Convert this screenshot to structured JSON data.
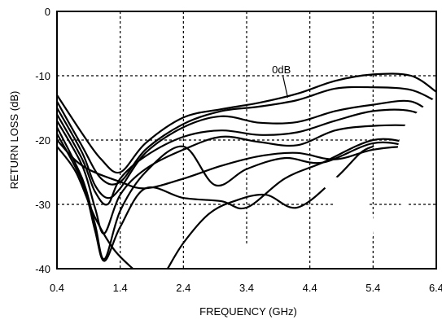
{
  "chart_data": {
    "type": "line",
    "xlabel": "FREQUENCY (GHz)",
    "ylabel": "RETURN LOSS (dB)",
    "xlim": [
      0.4,
      6.4
    ],
    "ylim": [
      -40,
      0
    ],
    "xticks": [
      0.4,
      1.4,
      2.4,
      3.4,
      4.4,
      5.4,
      6.4
    ],
    "xtick_labels": [
      "0.4",
      "1.4",
      "2.4",
      "3.4",
      "4.4",
      "5.4",
      "6.4"
    ],
    "yticks": [
      0,
      -10,
      -20,
      -30,
      -40
    ],
    "ytick_labels": [
      "0",
      "-10",
      "-20",
      "-30",
      "-40"
    ],
    "grid": true,
    "annotations": [
      {
        "text": "0dB",
        "x": 3.95,
        "y": -9.6,
        "arrow_to_x": 4.05,
        "arrow_to_y": -13.4
      }
    ],
    "series": [
      {
        "x": [
          0.4,
          0.8,
          1.1,
          1.4,
          1.8,
          2.4,
          3.0,
          3.6,
          4.2,
          4.8,
          5.4,
          6.0,
          6.4
        ],
        "y": [
          -13,
          -19,
          -23,
          -25,
          -20.5,
          -16.5,
          -15.2,
          -14.2,
          -12.8,
          -10.8,
          -9.8,
          -10,
          -12.5
        ]
      },
      {
        "x": [
          0.4,
          0.8,
          1.1,
          1.4,
          1.8,
          2.4,
          3.0,
          3.6,
          4.2,
          4.8,
          5.4,
          6.0,
          6.4
        ],
        "y": [
          -14,
          -21,
          -26,
          -26.5,
          -21.5,
          -17.5,
          -15.5,
          -14.8,
          -13.8,
          -12,
          -11.8,
          -12.2,
          -14
        ]
      },
      {
        "x": [
          0.4,
          0.8,
          1.0,
          1.2,
          1.4,
          1.8,
          2.4,
          3.0,
          3.6,
          4.2,
          4.8,
          5.4,
          6.0,
          6.4
        ],
        "y": [
          -15,
          -22,
          -27,
          -29,
          -27.5,
          -22,
          -18,
          -16.3,
          -17.3,
          -17.2,
          -15.5,
          -14.5,
          -14,
          -16.5
        ]
      },
      {
        "x": [
          0.4,
          0.8,
          1.0,
          1.2,
          1.4,
          1.8,
          2.4,
          3.0,
          3.6,
          4.2,
          4.8,
          5.4,
          6.0,
          6.4
        ],
        "y": [
          -16,
          -23,
          -28,
          -30,
          -26,
          -22.5,
          -19.5,
          -18.5,
          -19.2,
          -18.8,
          -17,
          -15.5,
          -15.5,
          -17.5
        ]
      },
      {
        "x": [
          0.4,
          0.8,
          1.0,
          1.15,
          1.4,
          1.8,
          2.4,
          3.0,
          3.6,
          4.2,
          4.8,
          5.4,
          6.0,
          6.4
        ],
        "y": [
          -17,
          -24,
          -30.5,
          -34.5,
          -28.5,
          -24.5,
          -21.5,
          -19.5,
          -20.3,
          -20.8,
          -18.5,
          -17.8,
          -17.8,
          -19
        ]
      },
      {
        "x": [
          0.4,
          0.8,
          1.0,
          1.15,
          1.4,
          1.8,
          2.4,
          2.9,
          3.4,
          4.0,
          4.6,
          5.4,
          6.0,
          6.4
        ],
        "y": [
          -18,
          -26,
          -33,
          -38.5,
          -31,
          -25,
          -21,
          -27,
          -24.5,
          -22.8,
          -23.5,
          -20.5,
          -21,
          -22
        ]
      },
      {
        "x": [
          0.4,
          0.8,
          1.0,
          1.15,
          1.4,
          1.8,
          2.4,
          3.0,
          3.4,
          4.0,
          4.6,
          5.4,
          6.0,
          6.4
        ],
        "y": [
          -19,
          -26.5,
          -34,
          -38.8,
          -33.5,
          -27.5,
          -29,
          -29.5,
          -30.5,
          -26,
          -23.5,
          -20,
          -20.5,
          -21.5
        ]
      },
      {
        "x": [
          0.4,
          0.8,
          1.4,
          1.8,
          2.4,
          3.0,
          3.6,
          4.2,
          4.8,
          5.4,
          6.0,
          6.4
        ],
        "y": [
          -20,
          -24,
          -26.5,
          -27.5,
          -26,
          -24,
          -22.5,
          -22,
          -23,
          -21.5,
          -21,
          -21.5
        ]
      },
      {
        "x": [
          0.4,
          0.7,
          1.0,
          1.3,
          1.6
        ],
        "y": [
          -21,
          -25,
          -32,
          -37,
          -40
        ]
      },
      {
        "x": [
          2.15,
          2.4,
          2.8,
          3.2,
          3.7,
          4.2,
          4.8,
          5.2,
          5.4
        ],
        "y": [
          -40,
          -36,
          -31.5,
          -29.5,
          -28.5,
          -30.5,
          -26,
          -22,
          -21
        ]
      }
    ]
  }
}
